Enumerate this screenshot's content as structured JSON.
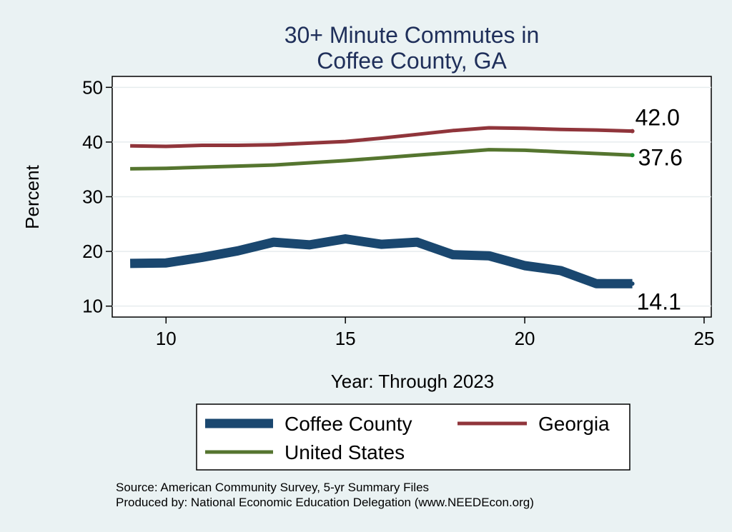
{
  "chart_data": {
    "type": "line",
    "title_lines": [
      "30+ Minute Commutes in",
      "Coffee County, GA"
    ],
    "xlabel": "Year: Through 2023",
    "ylabel": "Percent",
    "xlim": [
      8.5,
      25.2
    ],
    "ylim": [
      8,
      52
    ],
    "xticks": [
      10,
      15,
      20,
      25
    ],
    "yticks": [
      10,
      20,
      30,
      40,
      50
    ],
    "grid": true,
    "legend_position": "bottom",
    "series": [
      {
        "name": "Coffee County",
        "color": "#1a476f",
        "x": [
          9,
          10,
          11,
          12,
          13,
          14,
          15,
          16,
          17,
          18,
          19,
          20,
          21,
          22,
          23
        ],
        "values": [
          17.8,
          17.9,
          18.9,
          20.1,
          21.7,
          21.2,
          22.3,
          21.3,
          21.7,
          19.4,
          19.2,
          17.4,
          16.5,
          14.1,
          14.1
        ],
        "end_label": "14.1"
      },
      {
        "name": "Georgia",
        "color": "#90353b",
        "x": [
          9,
          10,
          11,
          12,
          13,
          14,
          15,
          16,
          17,
          18,
          19,
          20,
          21,
          22,
          23
        ],
        "values": [
          39.3,
          39.2,
          39.4,
          39.4,
          39.5,
          39.8,
          40.1,
          40.7,
          41.4,
          42.1,
          42.6,
          42.5,
          42.3,
          42.2,
          42.0
        ],
        "end_label": "42.0"
      },
      {
        "name": "United States",
        "color": "#55752f",
        "x": [
          9,
          10,
          11,
          12,
          13,
          14,
          15,
          16,
          17,
          18,
          19,
          20,
          21,
          22,
          23
        ],
        "values": [
          35.1,
          35.2,
          35.4,
          35.6,
          35.8,
          36.2,
          36.6,
          37.1,
          37.6,
          38.1,
          38.6,
          38.5,
          38.2,
          37.9,
          37.6
        ],
        "end_label": "37.6"
      }
    ],
    "notes": [
      "Source: American Community Survey, 5-yr Summary Files",
      "Produced by: National Economic Education Delegation (www.NEEDEcon.org)"
    ]
  }
}
